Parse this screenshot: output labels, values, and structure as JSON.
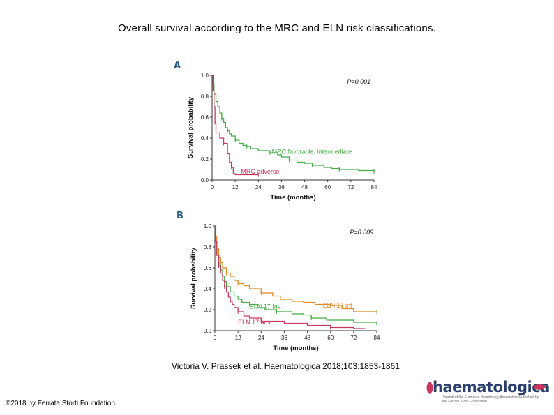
{
  "slide": {
    "title": "Overall survival according to the MRC and ELN risk classifications.",
    "citation": "Victoria V. Prassek et al. Haematologica 2018;103:1853-1861",
    "copyright": "©2018 by Ferrata Storti Foundation",
    "logo_text": "haematologica",
    "logo_subtext": "Journal of the European Hematology Association Published by the Ferrata Storti Foundation"
  },
  "chart_data": [
    {
      "panel": "A",
      "type": "line",
      "step": true,
      "pvalue": "P=0.001",
      "xlabel": "Time (months)",
      "ylabel": "Survival probability",
      "xlim": [
        0,
        84
      ],
      "ylim": [
        0,
        1
      ],
      "xticks": [
        "0",
        "12",
        "24",
        "36",
        "48",
        "60",
        "72",
        "84"
      ],
      "yticks": [
        "0.0",
        "0.2",
        "0.4",
        "0.6",
        "0.8",
        "1.0"
      ],
      "series": [
        {
          "name": "MRC favorable, intermediate",
          "color": "#3fae3f",
          "points": [
            [
              0,
              1.0
            ],
            [
              0.5,
              0.92
            ],
            [
              1,
              0.82
            ],
            [
              2,
              0.75
            ],
            [
              3,
              0.7
            ],
            [
              4,
              0.64
            ],
            [
              5,
              0.59
            ],
            [
              6,
              0.55
            ],
            [
              7,
              0.5
            ],
            [
              8,
              0.47
            ],
            [
              9,
              0.44
            ],
            [
              10,
              0.42
            ],
            [
              12,
              0.38
            ],
            [
              14,
              0.35
            ],
            [
              16,
              0.33
            ],
            [
              18,
              0.32
            ],
            [
              20,
              0.3
            ],
            [
              24,
              0.28
            ],
            [
              30,
              0.26
            ],
            [
              34,
              0.24
            ],
            [
              36,
              0.22
            ],
            [
              40,
              0.19
            ],
            [
              44,
              0.17
            ],
            [
              48,
              0.16
            ],
            [
              52,
              0.14
            ],
            [
              58,
              0.12
            ],
            [
              62,
              0.11
            ],
            [
              66,
              0.1
            ],
            [
              72,
              0.1
            ],
            [
              76,
              0.09
            ],
            [
              84,
              0.08
            ]
          ]
        },
        {
          "name": "MRC adverse",
          "color": "#c8385e",
          "points": [
            [
              0,
              1.0
            ],
            [
              0.5,
              0.85
            ],
            [
              1,
              0.7
            ],
            [
              1.5,
              0.55
            ],
            [
              2,
              0.45
            ],
            [
              4,
              0.4
            ],
            [
              6,
              0.35
            ],
            [
              8,
              0.25
            ],
            [
              9,
              0.17
            ],
            [
              10,
              0.12
            ],
            [
              11,
              0.06
            ],
            [
              12,
              0.05
            ],
            [
              24,
              0.05
            ]
          ]
        }
      ]
    },
    {
      "panel": "B",
      "type": "line",
      "step": true,
      "pvalue": "P=0.009",
      "xlabel": "Time (months)",
      "ylabel": "Survival probability",
      "xlim": [
        0,
        84
      ],
      "ylim": [
        0,
        1
      ],
      "xticks": [
        "0",
        "12",
        "24",
        "36",
        "48",
        "60",
        "72",
        "84"
      ],
      "yticks": [
        "0.0",
        "0.2",
        "0.4",
        "0.6",
        "0.8",
        "1.0"
      ],
      "series": [
        {
          "name": "ELN 17 fav.",
          "color": "#3fae3f",
          "points": [
            [
              0,
              1.0
            ],
            [
              0.5,
              0.85
            ],
            [
              1,
              0.72
            ],
            [
              2,
              0.64
            ],
            [
              3,
              0.58
            ],
            [
              4,
              0.52
            ],
            [
              5,
              0.47
            ],
            [
              6,
              0.42
            ],
            [
              8,
              0.37
            ],
            [
              10,
              0.33
            ],
            [
              12,
              0.3
            ],
            [
              14,
              0.27
            ],
            [
              18,
              0.25
            ],
            [
              22,
              0.22
            ],
            [
              26,
              0.2
            ],
            [
              32,
              0.18
            ],
            [
              40,
              0.16
            ],
            [
              46,
              0.15
            ],
            [
              50,
              0.12
            ],
            [
              58,
              0.1
            ],
            [
              72,
              0.08
            ],
            [
              84,
              0.07
            ]
          ]
        },
        {
          "name": "ELN 17 int",
          "color": "#e08a1e",
          "points": [
            [
              0,
              1.0
            ],
            [
              0.5,
              0.9
            ],
            [
              1,
              0.78
            ],
            [
              2,
              0.7
            ],
            [
              3,
              0.65
            ],
            [
              4,
              0.6
            ],
            [
              6,
              0.55
            ],
            [
              8,
              0.52
            ],
            [
              10,
              0.48
            ],
            [
              12,
              0.45
            ],
            [
              15,
              0.43
            ],
            [
              18,
              0.4
            ],
            [
              24,
              0.36
            ],
            [
              30,
              0.33
            ],
            [
              34,
              0.3
            ],
            [
              40,
              0.28
            ],
            [
              46,
              0.27
            ],
            [
              52,
              0.25
            ],
            [
              60,
              0.24
            ],
            [
              66,
              0.21
            ],
            [
              72,
              0.18
            ],
            [
              84,
              0.18
            ]
          ]
        },
        {
          "name": "ELN 17 adv",
          "color": "#c8385e",
          "points": [
            [
              0,
              1.0
            ],
            [
              0.5,
              0.85
            ],
            [
              1,
              0.72
            ],
            [
              2,
              0.62
            ],
            [
              3,
              0.55
            ],
            [
              4,
              0.48
            ],
            [
              5,
              0.42
            ],
            [
              6,
              0.37
            ],
            [
              7,
              0.32
            ],
            [
              8,
              0.28
            ],
            [
              9,
              0.25
            ],
            [
              10,
              0.22
            ],
            [
              12,
              0.18
            ],
            [
              15,
              0.14
            ],
            [
              18,
              0.12
            ],
            [
              24,
              0.09
            ],
            [
              36,
              0.07
            ],
            [
              48,
              0.05
            ],
            [
              60,
              0.03
            ],
            [
              72,
              0.02
            ],
            [
              78,
              0.02
            ]
          ]
        }
      ]
    }
  ]
}
